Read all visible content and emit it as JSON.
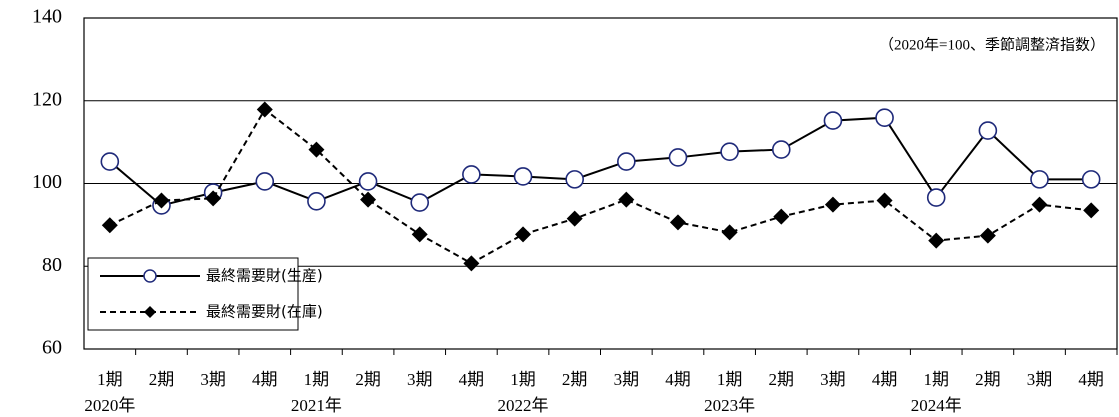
{
  "chart_data": {
    "type": "line",
    "annotation": "（2020年=100、季節調整済指数）",
    "categories": [
      "1期",
      "2期",
      "3期",
      "4期",
      "1期",
      "2期",
      "3期",
      "4期",
      "1期",
      "2期",
      "3期",
      "4期",
      "1期",
      "2期",
      "3期",
      "4期",
      "1期",
      "2期",
      "3期",
      "4期"
    ],
    "year_labels": [
      "2020年",
      "2021年",
      "2022年",
      "2023年",
      "2024年"
    ],
    "series": [
      {
        "name": "最終需要財(生産)",
        "color": "#000000",
        "line_style": "solid",
        "marker": "circle",
        "values": [
          105.3,
          94.7,
          97.8,
          100.5,
          95.7,
          100.5,
          95.4,
          102.2,
          101.7,
          101.0,
          105.3,
          106.3,
          107.7,
          108.2,
          115.2,
          115.9,
          96.6,
          112.8,
          101.0,
          101.0
        ]
      },
      {
        "name": "最終需要財(在庫)",
        "color": "#000000",
        "line_style": "dashed",
        "marker": "diamond",
        "values": [
          89.9,
          95.9,
          96.4,
          117.9,
          108.2,
          96.1,
          87.7,
          80.7,
          87.7,
          91.5,
          96.1,
          90.6,
          88.2,
          92.0,
          94.9,
          95.9,
          86.2,
          87.4,
          94.9,
          93.5
        ]
      }
    ],
    "ylim": [
      60,
      140
    ],
    "yticks": [
      60,
      80,
      100,
      120,
      140
    ],
    "grid": true,
    "legend": "lower left"
  }
}
